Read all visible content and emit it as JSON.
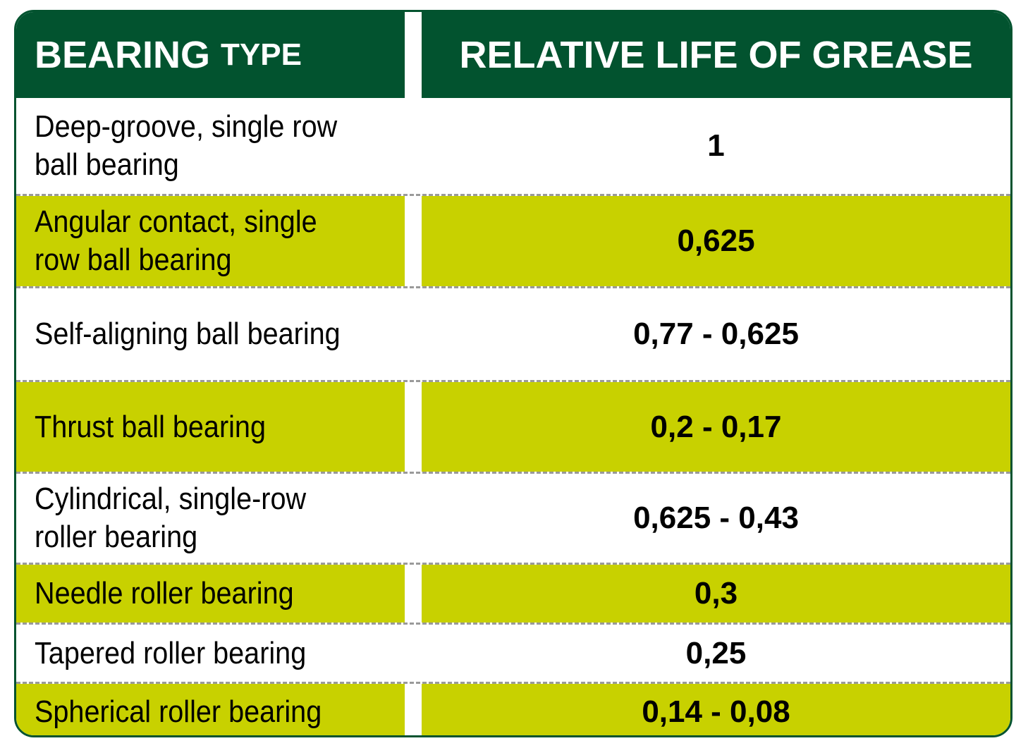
{
  "header": {
    "col1_main": "BEARING",
    "col1_small": "TYPE",
    "col2": "RELATIVE LIFE OF GREASE"
  },
  "colors": {
    "header_bg": "#02532f",
    "highlight_row": "#c8d100",
    "plain_row": "#ffffff"
  },
  "rows": [
    {
      "type": "Deep-groove, single row ball bearing",
      "life": "1"
    },
    {
      "type": "Angular contact, single row ball bearing",
      "life": "0,625"
    },
    {
      "type": "Self-aligning ball bearing",
      "life": "0,77 - 0,625"
    },
    {
      "type": "Thrust ball bearing",
      "life": "0,2 - 0,17"
    },
    {
      "type": "Cylindrical, single-row roller bearing",
      "life": "0,625 - 0,43"
    },
    {
      "type": "Needle roller bearing",
      "life": "0,3"
    },
    {
      "type": "Tapered roller bearing",
      "life": "0,25"
    },
    {
      "type": "Spherical roller bearing",
      "life": "0,14 - 0,08"
    }
  ]
}
